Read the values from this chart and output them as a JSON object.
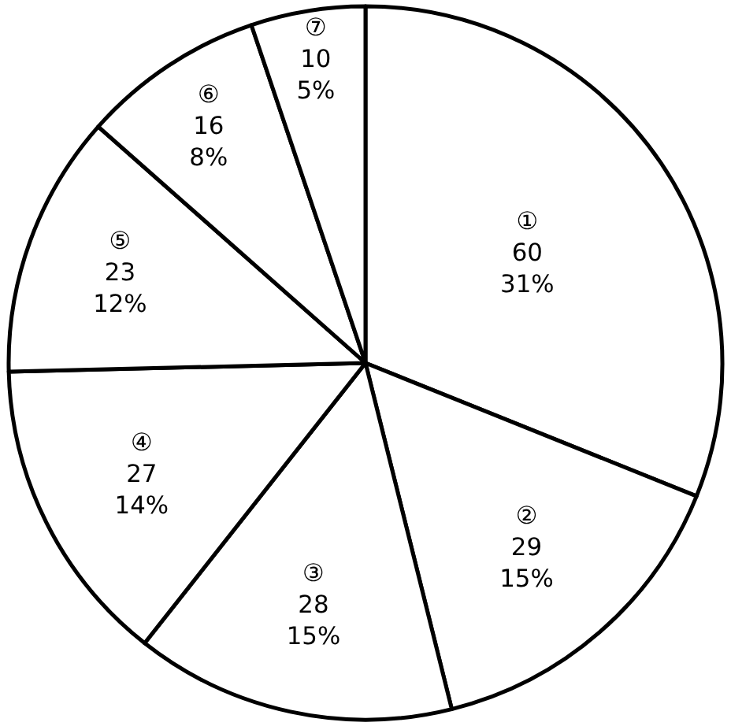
{
  "chart_data": {
    "type": "pie",
    "categories": [
      "①",
      "②",
      "③",
      "④",
      "⑤",
      "⑥",
      "⑦"
    ],
    "values": [
      60,
      29,
      28,
      27,
      23,
      16,
      10
    ],
    "value_labels": [
      "60\n31%",
      "29\n15%",
      "28\n15%",
      "27\n14%",
      "23\n12%",
      "16\n8%",
      "10\n5%"
    ],
    "colors": [
      "#ffffff",
      "#ffffff",
      "#ffffff",
      "#ffffff",
      "#ffffff",
      "#ffffff",
      "#ffffff"
    ],
    "legend": false
  }
}
